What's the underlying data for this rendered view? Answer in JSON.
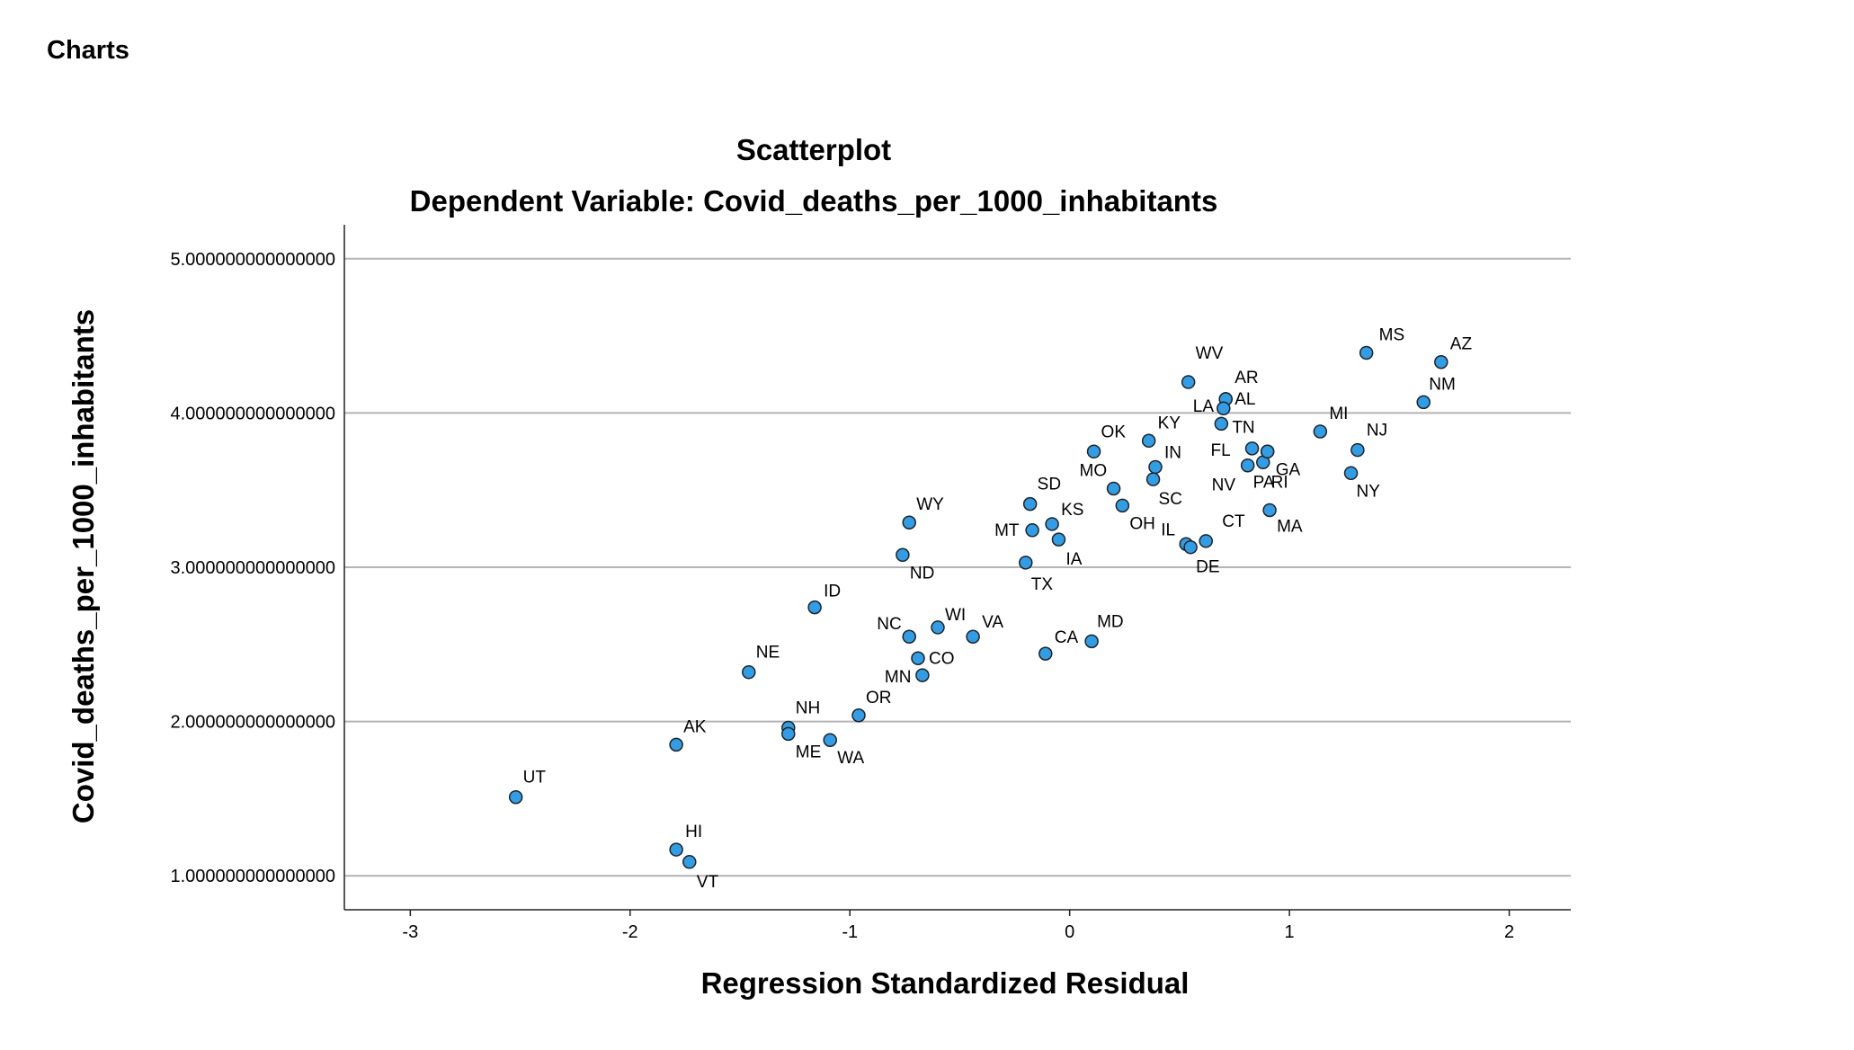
{
  "page": {
    "section_heading": "Charts"
  },
  "chart_data": {
    "type": "scatter",
    "title": "Scatterplot",
    "subtitle": "Dependent Variable: Covid_deaths_per_1000_inhabitants",
    "xlabel": "Regression Standardized Residual",
    "ylabel": "Covid_deaths_per_1000_inhabitants",
    "xlim": [
      -3.3,
      2.28
    ],
    "ylim": [
      0.78,
      5.22
    ],
    "x_ticks": [
      -3,
      -2,
      -1,
      0,
      1,
      2
    ],
    "x_tick_labels": [
      "-3",
      "-2",
      "-1",
      "0",
      "1",
      "2"
    ],
    "y_ticks": [
      1,
      2,
      3,
      4,
      5
    ],
    "y_tick_labels": [
      "1.000000000000000",
      "2.000000000000000",
      "3.000000000000000",
      "4.000000000000000",
      "5.000000000000000"
    ],
    "grid": "horizontal",
    "marker_color": "#2f9ee8",
    "points": [
      {
        "label": "MS",
        "x": 1.35,
        "y": 4.39
      },
      {
        "label": "AZ",
        "x": 1.69,
        "y": 4.33
      },
      {
        "label": "NM",
        "x": 1.61,
        "y": 4.07
      },
      {
        "label": "WV",
        "x": 0.54,
        "y": 4.2
      },
      {
        "label": "AL",
        "x": 0.71,
        "y": 4.09
      },
      {
        "label": "AR",
        "x": 0.71,
        "y": 4.09
      },
      {
        "label": "LA",
        "x": 0.7,
        "y": 4.03
      },
      {
        "label": "TN",
        "x": 0.69,
        "y": 3.93
      },
      {
        "label": "MI",
        "x": 1.14,
        "y": 3.88
      },
      {
        "label": "NJ",
        "x": 1.31,
        "y": 3.76
      },
      {
        "label": "NY",
        "x": 1.28,
        "y": 3.61
      },
      {
        "label": "KY",
        "x": 0.36,
        "y": 3.82
      },
      {
        "label": "OK",
        "x": 0.11,
        "y": 3.75
      },
      {
        "label": "IN",
        "x": 0.39,
        "y": 3.65
      },
      {
        "label": "FL",
        "x": 0.83,
        "y": 3.77
      },
      {
        "label": "GA",
        "x": 0.88,
        "y": 3.68
      },
      {
        "label": "NV",
        "x": 0.81,
        "y": 3.66
      },
      {
        "label": "PA",
        "x": 0.9,
        "y": 3.75
      },
      {
        "label": "RI",
        "x": 0.9,
        "y": 3.75
      },
      {
        "label": "MO",
        "x": 0.2,
        "y": 3.51
      },
      {
        "label": "SC",
        "x": 0.38,
        "y": 3.57
      },
      {
        "label": "SD",
        "x": -0.18,
        "y": 3.41
      },
      {
        "label": "OH",
        "x": 0.24,
        "y": 3.4
      },
      {
        "label": "KS",
        "x": -0.08,
        "y": 3.28
      },
      {
        "label": "MT",
        "x": -0.17,
        "y": 3.24
      },
      {
        "label": "IA",
        "x": -0.05,
        "y": 3.18
      },
      {
        "label": "IL",
        "x": 0.53,
        "y": 3.15
      },
      {
        "label": "DE",
        "x": 0.55,
        "y": 3.13
      },
      {
        "label": "CT",
        "x": 0.62,
        "y": 3.17
      },
      {
        "label": "MA",
        "x": 0.91,
        "y": 3.37
      },
      {
        "label": "WY",
        "x": -0.73,
        "y": 3.29
      },
      {
        "label": "ND",
        "x": -0.76,
        "y": 3.08
      },
      {
        "label": "TX",
        "x": -0.2,
        "y": 3.03
      },
      {
        "label": "ID",
        "x": -1.16,
        "y": 2.74
      },
      {
        "label": "NC",
        "x": -0.73,
        "y": 2.55
      },
      {
        "label": "WI",
        "x": -0.6,
        "y": 2.61
      },
      {
        "label": "VA",
        "x": -0.44,
        "y": 2.55
      },
      {
        "label": "CO",
        "x": -0.69,
        "y": 2.41
      },
      {
        "label": "MN",
        "x": -0.67,
        "y": 2.3
      },
      {
        "label": "CA",
        "x": -0.11,
        "y": 2.44
      },
      {
        "label": "MD",
        "x": 0.1,
        "y": 2.52
      },
      {
        "label": "NE",
        "x": -1.46,
        "y": 2.32
      },
      {
        "label": "OR",
        "x": -0.96,
        "y": 2.04
      },
      {
        "label": "NH",
        "x": -1.28,
        "y": 1.96
      },
      {
        "label": "ME",
        "x": -1.28,
        "y": 1.92
      },
      {
        "label": "WA",
        "x": -1.09,
        "y": 1.88
      },
      {
        "label": "AK",
        "x": -1.79,
        "y": 1.85
      },
      {
        "label": "UT",
        "x": -2.52,
        "y": 1.51
      },
      {
        "label": "HI",
        "x": -1.79,
        "y": 1.17
      },
      {
        "label": "VT",
        "x": -1.73,
        "y": 1.09
      }
    ]
  }
}
